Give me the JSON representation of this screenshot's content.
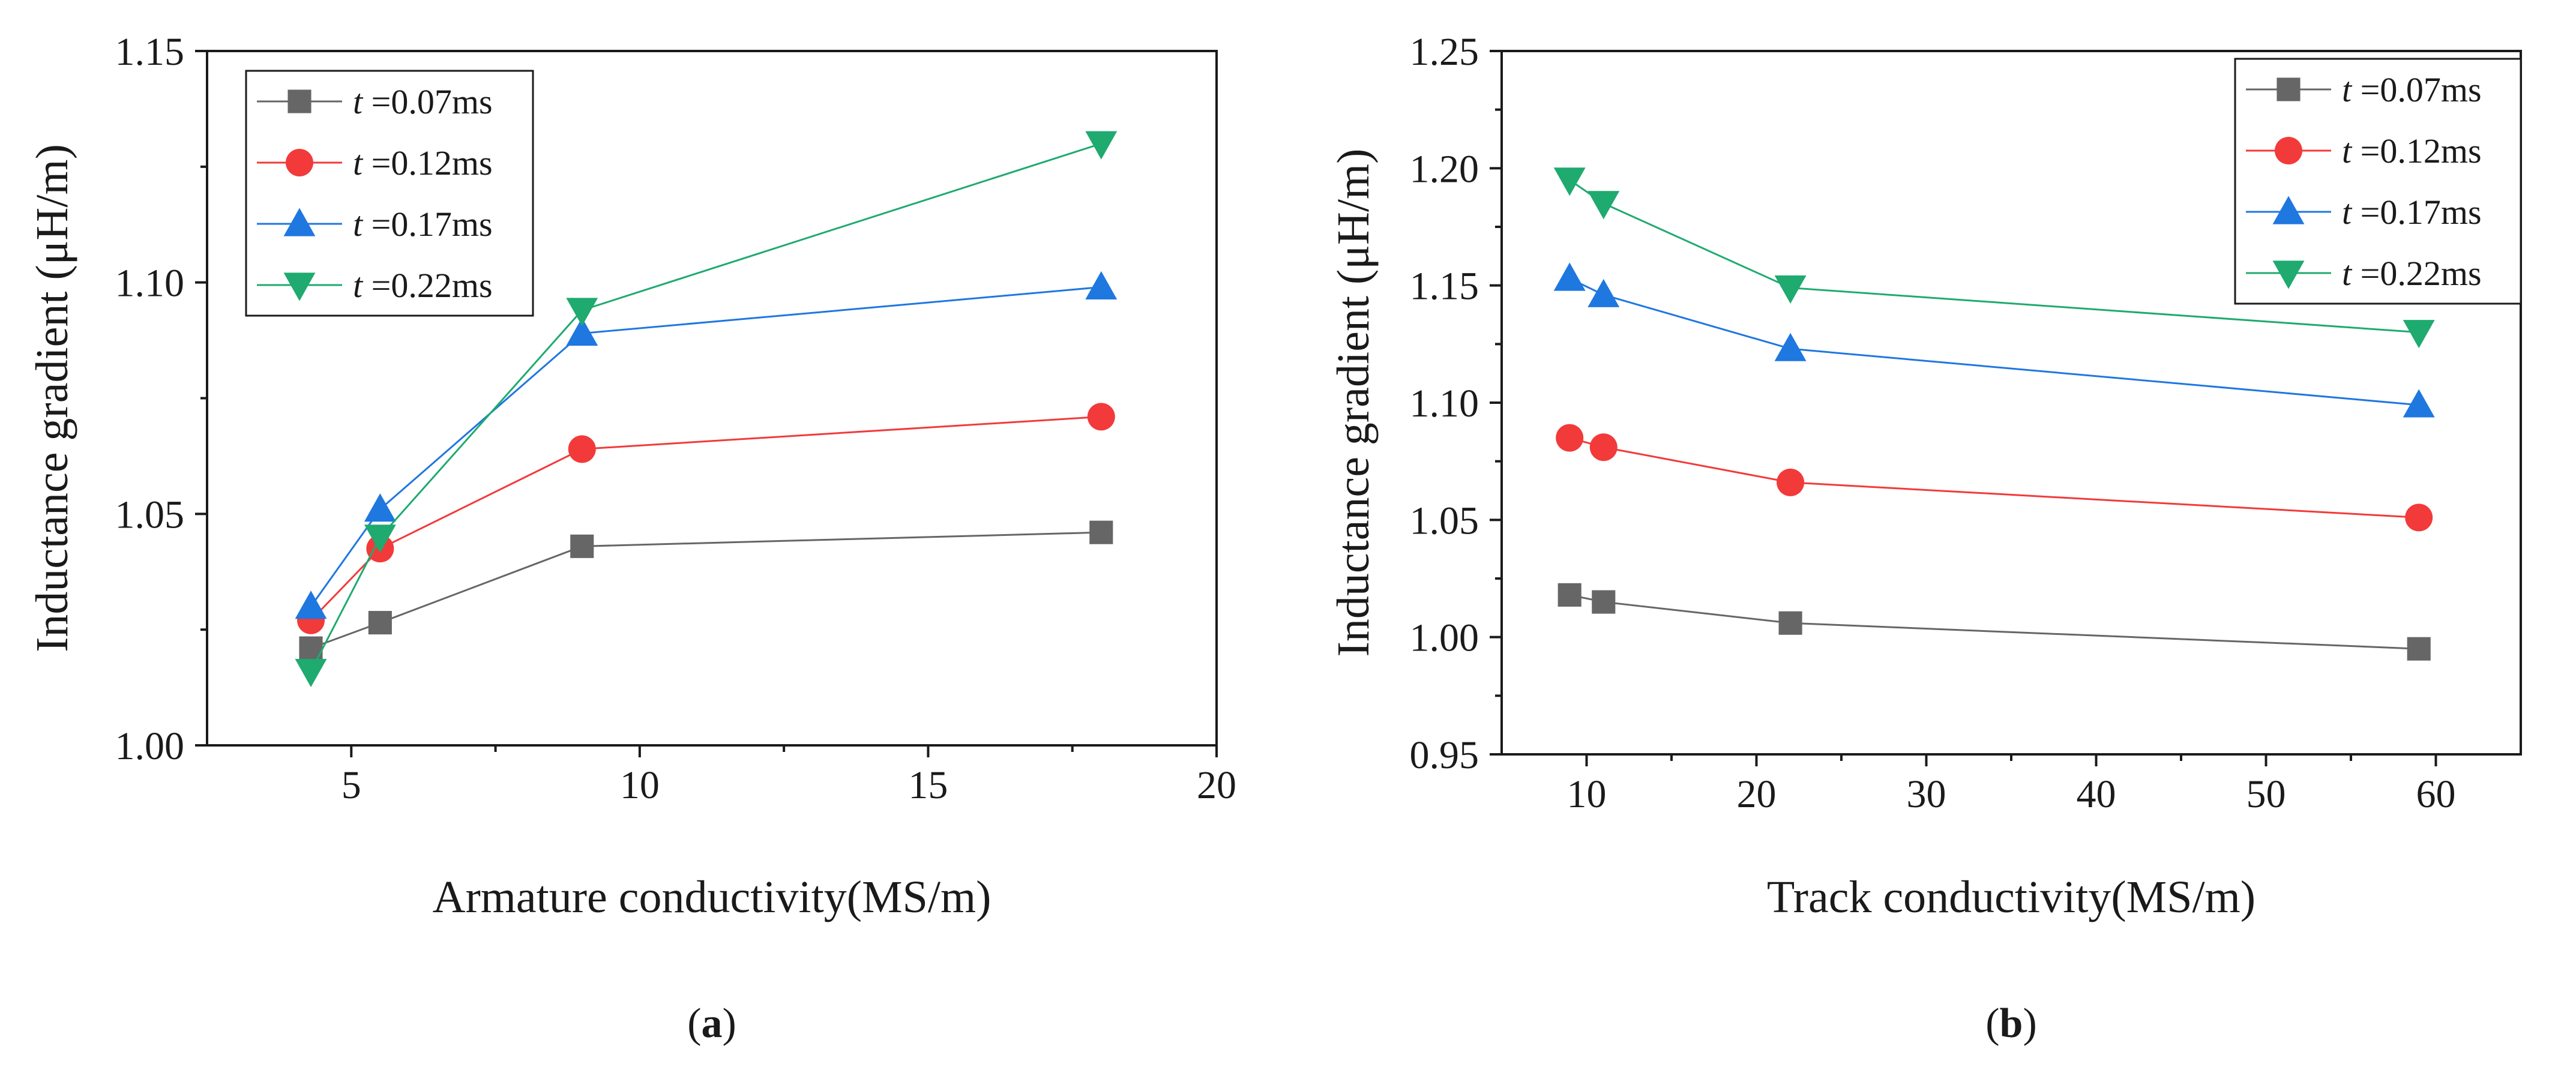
{
  "chart_data": [
    {
      "type": "line",
      "panel": "a",
      "panel_label_open": "(",
      "panel_label_letter": "a",
      "panel_label_close": ")",
      "xlabel": "Armature conductivity(MS/m)",
      "ylabel": "Inductance gradient (μH/m)",
      "xlim": [
        2.5,
        20
      ],
      "ylim": [
        1.0,
        1.15
      ],
      "xticks": [
        5,
        10,
        15,
        20
      ],
      "xtick_labels": [
        "5",
        "10",
        "15",
        "20"
      ],
      "xminor": [
        7.5,
        12.5,
        17.5
      ],
      "yticks": [
        1.0,
        1.05,
        1.1,
        1.15
      ],
      "ytick_labels": [
        "1.00",
        "1.05",
        "1.10",
        "1.15"
      ],
      "yminor": [
        1.025,
        1.075,
        1.125
      ],
      "legend_position": "top-left",
      "x": [
        4.3,
        5.5,
        9.0,
        18.0
      ],
      "series": [
        {
          "name": "t =0.07ms",
          "name_prefix": "t",
          "name_rest": " =0.07ms",
          "color": "#666666",
          "marker": "square",
          "values": [
            1.021,
            1.0265,
            1.043,
            1.046
          ]
        },
        {
          "name": "t =0.12ms",
          "name_prefix": "t",
          "name_rest": " =0.12ms",
          "color": "#f23a3a",
          "marker": "circle",
          "values": [
            1.027,
            1.0425,
            1.064,
            1.071
          ]
        },
        {
          "name": "t =0.17ms",
          "name_prefix": "t",
          "name_rest": " =0.17ms",
          "color": "#1f77e0",
          "marker": "triangle-up",
          "values": [
            1.03,
            1.051,
            1.089,
            1.099
          ]
        },
        {
          "name": "t =0.22ms",
          "name_prefix": "t",
          "name_rest": " =0.22ms",
          "color": "#1faa6f",
          "marker": "triangle-down",
          "values": [
            1.016,
            1.045,
            1.094,
            1.13
          ]
        }
      ]
    },
    {
      "type": "line",
      "panel": "b",
      "panel_label_open": "(",
      "panel_label_letter": "b",
      "panel_label_close": ")",
      "xlabel": "Track conductivity(MS/m)",
      "ylabel": "Inductance gradient (μH/m)",
      "xlim": [
        5,
        65
      ],
      "ylim": [
        0.95,
        1.25
      ],
      "xticks": [
        10,
        20,
        30,
        40,
        50,
        60
      ],
      "xtick_labels": [
        "10",
        "20",
        "30",
        "40",
        "50",
        "60"
      ],
      "xminor": [
        15,
        25,
        35,
        45,
        55
      ],
      "yticks": [
        0.95,
        1.0,
        1.05,
        1.1,
        1.15,
        1.2,
        1.25
      ],
      "ytick_labels": [
        "0.95",
        "1.00",
        "1.05",
        "1.10",
        "1.15",
        "1.20",
        "1.25"
      ],
      "yminor": [
        0.975,
        1.025,
        1.075,
        1.125,
        1.175,
        1.225
      ],
      "legend_position": "top-right",
      "x": [
        9,
        11,
        22,
        59
      ],
      "series": [
        {
          "name": "t =0.07ms",
          "name_prefix": "t",
          "name_rest": " =0.07ms",
          "color": "#666666",
          "marker": "square",
          "values": [
            1.018,
            1.015,
            1.006,
            0.995
          ]
        },
        {
          "name": "t =0.12ms",
          "name_prefix": "t",
          "name_rest": " =0.12ms",
          "color": "#f23a3a",
          "marker": "circle",
          "values": [
            1.085,
            1.081,
            1.066,
            1.051
          ]
        },
        {
          "name": "t =0.17ms",
          "name_prefix": "t",
          "name_rest": " =0.17ms",
          "color": "#1f77e0",
          "marker": "triangle-up",
          "values": [
            1.153,
            1.146,
            1.123,
            1.099
          ]
        },
        {
          "name": "t =0.22ms",
          "name_prefix": "t",
          "name_rest": " =0.22ms",
          "color": "#1faa6f",
          "marker": "triangle-down",
          "values": [
            1.195,
            1.185,
            1.149,
            1.13
          ]
        }
      ]
    }
  ]
}
